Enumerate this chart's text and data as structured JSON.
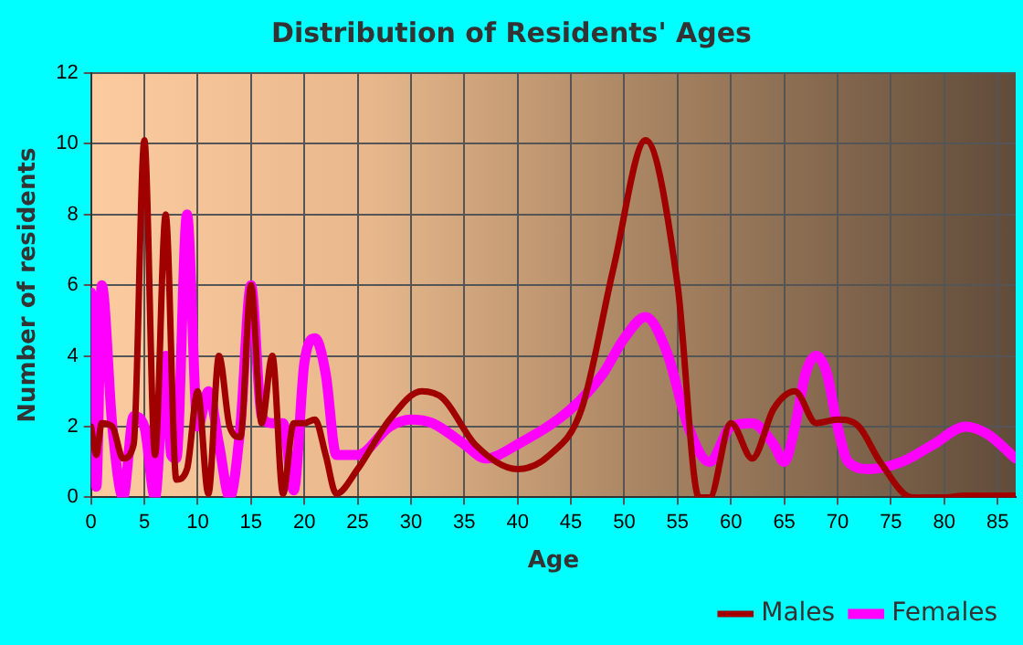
{
  "chart_data": {
    "type": "line",
    "title": "Distribution of Residents' Ages",
    "xlabel": "Age",
    "ylabel": "Number of residents",
    "xlim": [
      0,
      86.7
    ],
    "xticks": [
      0,
      5,
      10,
      15,
      20,
      25,
      30,
      35,
      40,
      45,
      50,
      55,
      60,
      65,
      70,
      75,
      80,
      85
    ],
    "ylim": [
      0,
      12
    ],
    "yticks": [
      0,
      2,
      4,
      6,
      8,
      10,
      12
    ],
    "grid": true,
    "legend": "bottom right",
    "marker": "none",
    "line_style": "solid",
    "series": [
      {
        "name": "Males",
        "color": "#a00000",
        "x": [
          0,
          0.5,
          1,
          2,
          3,
          4,
          5,
          6,
          7,
          8,
          9,
          10,
          11,
          12,
          13,
          14,
          15,
          16,
          17,
          18,
          19,
          20,
          21,
          22,
          23,
          25,
          28,
          31,
          33,
          36,
          40,
          43,
          46,
          49,
          52,
          55,
          57,
          58,
          60,
          62,
          64,
          66,
          68,
          70,
          72,
          74,
          77,
          80,
          82,
          86.7
        ],
        "values": [
          2,
          1.2,
          2.1,
          2,
          1.1,
          1.5,
          10.1,
          1.2,
          8,
          0.5,
          0.8,
          3,
          0.1,
          4,
          2,
          1.7,
          6,
          2.1,
          4,
          0.1,
          2.1,
          2.1,
          2.2,
          1.2,
          0.1,
          0.8,
          2.2,
          3,
          2.8,
          1.5,
          0.8,
          1.2,
          2.5,
          6.5,
          10.1,
          6,
          0,
          0,
          2.1,
          1.1,
          2.5,
          3,
          2.1,
          2.2,
          2,
          1,
          0,
          0,
          0.05,
          0.05
        ]
      },
      {
        "name": "Females",
        "color": "#ff00ff",
        "x": [
          0,
          0.5,
          1,
          2,
          3,
          4,
          5,
          6,
          7,
          7.5,
          8,
          9,
          10,
          11,
          12,
          13,
          14,
          15,
          16,
          17,
          18,
          19,
          20,
          21,
          22,
          23,
          25,
          28,
          30,
          32,
          35,
          37,
          40,
          45,
          48,
          50,
          52,
          54,
          56,
          58,
          60,
          62,
          64,
          65,
          66,
          67,
          68,
          69,
          70,
          71,
          73,
          76,
          79,
          82,
          84,
          86.7
        ],
        "values": [
          5.8,
          0.3,
          6,
          2,
          0,
          2.3,
          2,
          0,
          4,
          1.2,
          1.1,
          8,
          2,
          3,
          1.5,
          0,
          2,
          6,
          2.3,
          2.1,
          2.1,
          0.2,
          3.8,
          4.5,
          3.5,
          1.2,
          1.2,
          2,
          2.2,
          2.1,
          1.5,
          1.1,
          1.5,
          2.5,
          3.5,
          4.5,
          5.1,
          4.1,
          2,
          1,
          2,
          2.1,
          1.5,
          1,
          2,
          3.5,
          4,
          3.5,
          2,
          1,
          0.8,
          1,
          1.5,
          2,
          1.8,
          1.1
        ]
      }
    ]
  }
}
